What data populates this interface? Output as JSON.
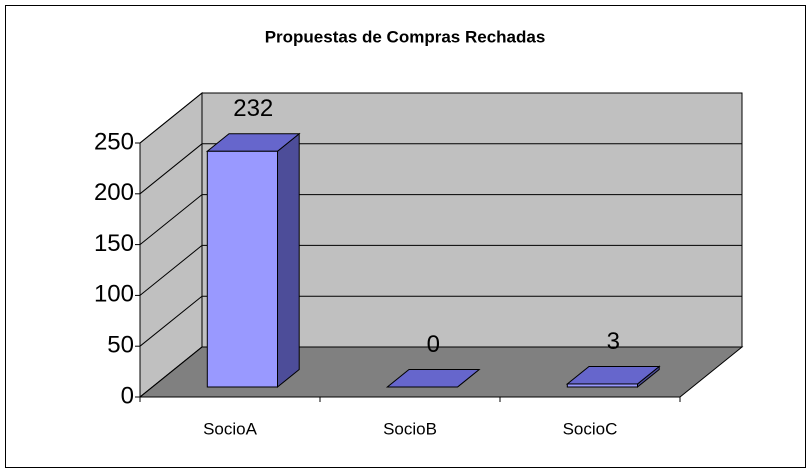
{
  "chart_data": {
    "type": "bar3d",
    "title": "Propuestas de Compras Rechadas",
    "categories": [
      "SocioA",
      "SocioB",
      "SocioC"
    ],
    "values": [
      232,
      0,
      3
    ],
    "color": "#9999ff",
    "ylim": [
      0,
      250
    ],
    "yticks": [
      0,
      50,
      100,
      150,
      200,
      250
    ],
    "grid": true
  }
}
